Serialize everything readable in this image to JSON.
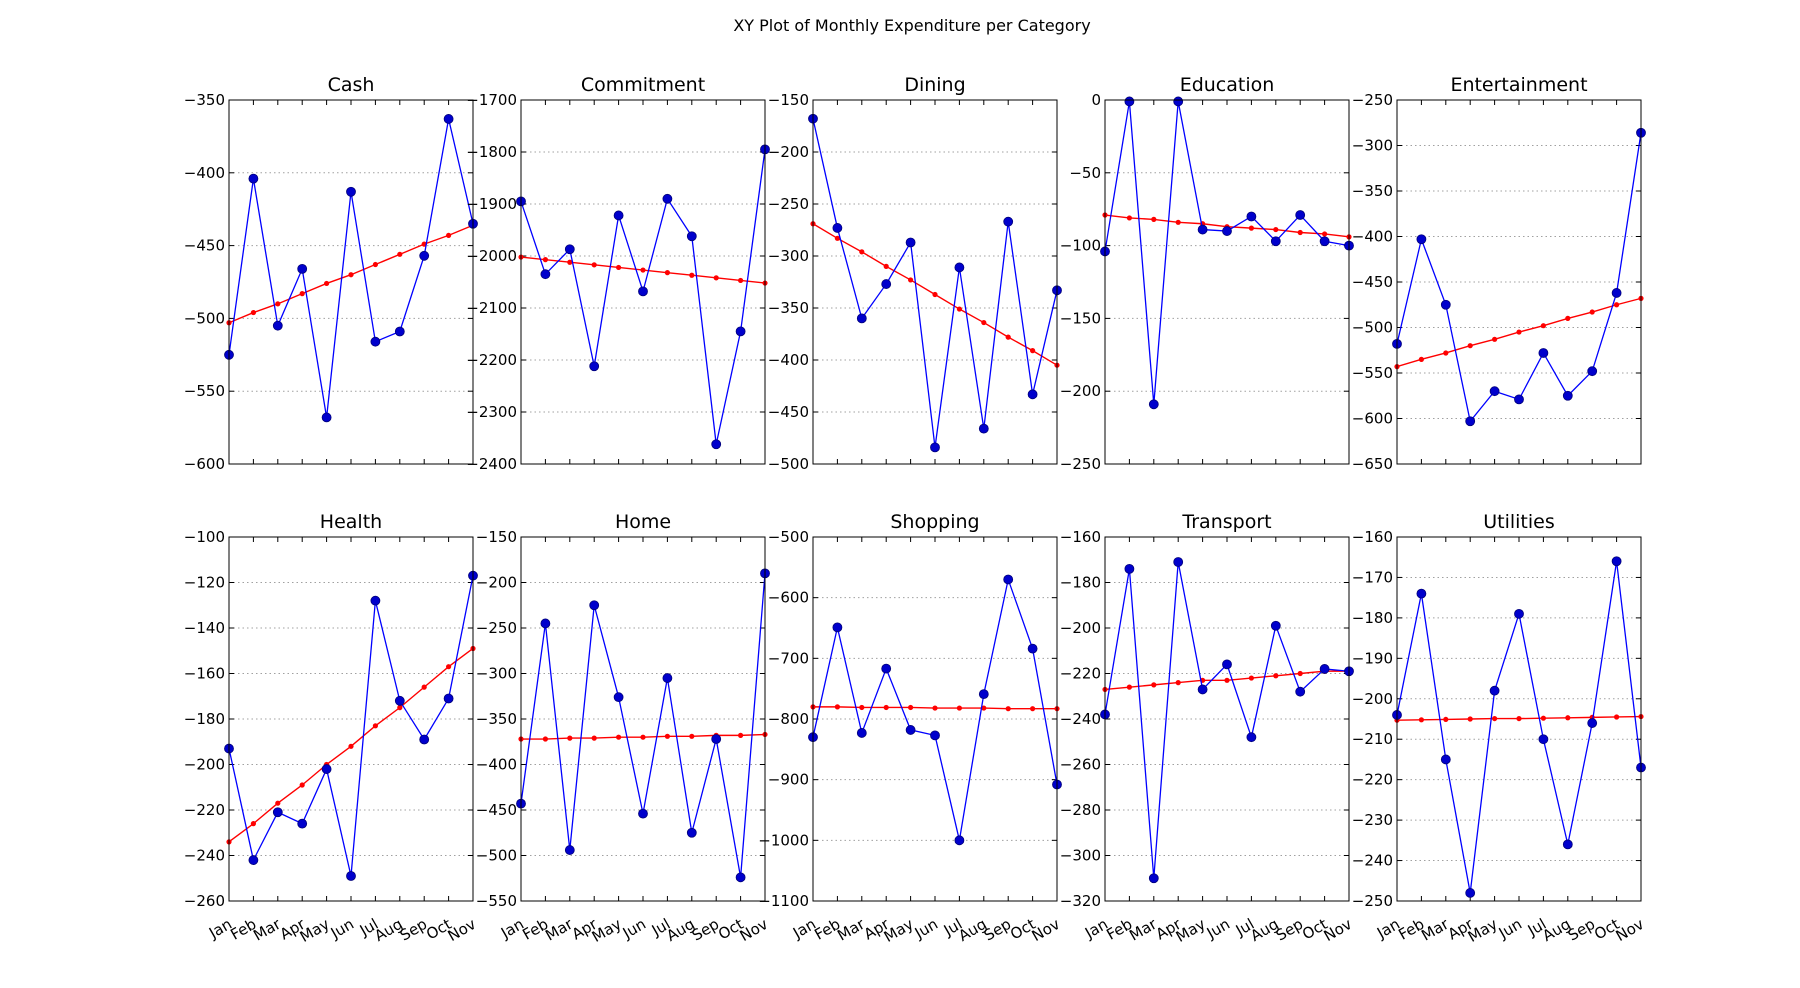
{
  "chart_data": {
    "type": "line",
    "title": "XY Plot of Monthly Expenditure per Category",
    "months": [
      "Jan",
      "Feb",
      "Mar",
      "Apr",
      "May",
      "Jun",
      "Jul",
      "Aug",
      "Sep",
      "Oct",
      "Nov"
    ],
    "grid": "y-dotted",
    "series_style": {
      "actual": "#0000ff",
      "trend": "#ff0000"
    },
    "panels": [
      {
        "name": "Cash",
        "ylim": [
          -600,
          -350
        ],
        "yticks": [
          -350,
          -400,
          -450,
          -500,
          -550,
          -600
        ],
        "values": [
          -525,
          -404,
          -505,
          -466,
          -568,
          -413,
          -516,
          -509,
          -457,
          -363,
          -435
        ],
        "trend": [
          -503,
          -496,
          -490,
          -483,
          -476,
          -470,
          -463,
          -456,
          -449,
          -443,
          -436
        ]
      },
      {
        "name": "Commitment",
        "ylim": [
          -2400,
          -1700
        ],
        "yticks": [
          -1700,
          -1800,
          -1900,
          -2000,
          -2100,
          -2200,
          -2300,
          -2400
        ],
        "values": [
          -1895,
          -2035,
          -1987,
          -2212,
          -1922,
          -2068,
          -1890,
          -1962,
          -2362,
          -2145,
          -1795
        ],
        "trend": [
          -2002,
          -2007,
          -2012,
          -2017,
          -2022,
          -2027,
          -2032,
          -2037,
          -2042,
          -2047,
          -2052
        ]
      },
      {
        "name": "Dining",
        "ylim": [
          -500,
          -150
        ],
        "yticks": [
          -150,
          -200,
          -250,
          -300,
          -350,
          -400,
          -450,
          -500
        ],
        "values": [
          -168,
          -273,
          -360,
          -327,
          -287,
          -484,
          -311,
          -466,
          -267,
          -433,
          -333
        ],
        "trend": [
          -269,
          -283,
          -296,
          -310,
          -323,
          -337,
          -351,
          -364,
          -378,
          -391,
          -405
        ]
      },
      {
        "name": "Education",
        "ylim": [
          -250,
          0
        ],
        "yticks": [
          0,
          -50,
          -100,
          -150,
          -200,
          -250
        ],
        "values": [
          -104,
          -1,
          -209,
          -1,
          -89,
          -90,
          -80,
          -97,
          -79,
          -97,
          -100
        ],
        "trend": [
          -79,
          -81,
          -82,
          -84,
          -85,
          -87,
          -88,
          -89,
          -91,
          -92,
          -94
        ]
      },
      {
        "name": "Entertainment",
        "ylim": [
          -650,
          -250
        ],
        "yticks": [
          -250,
          -300,
          -350,
          -400,
          -450,
          -500,
          -550,
          -600,
          -650
        ],
        "values": [
          -518,
          -403,
          -475,
          -603,
          -570,
          -579,
          -528,
          -575,
          -548,
          -462,
          -286
        ],
        "trend": [
          -543,
          -535,
          -528,
          -520,
          -513,
          -505,
          -498,
          -490,
          -483,
          -475,
          -468
        ]
      },
      {
        "name": "Health",
        "ylim": [
          -260,
          -100
        ],
        "yticks": [
          -100,
          -120,
          -140,
          -160,
          -180,
          -200,
          -220,
          -240,
          -260
        ],
        "values": [
          -193,
          -242,
          -221,
          -226,
          -202,
          -249,
          -128,
          -172,
          -189,
          -171,
          -117
        ],
        "trend": [
          -234,
          -226,
          -217,
          -209,
          -200,
          -192,
          -183,
          -175,
          -166,
          -157,
          -149
        ]
      },
      {
        "name": "Home",
        "ylim": [
          -550,
          -150
        ],
        "yticks": [
          -150,
          -200,
          -250,
          -300,
          -350,
          -400,
          -450,
          -500,
          -550
        ],
        "values": [
          -443,
          -245,
          -494,
          -225,
          -326,
          -454,
          -305,
          -475,
          -372,
          -524,
          -190
        ],
        "trend": [
          -372,
          -372,
          -371,
          -371,
          -370,
          -370,
          -369,
          -369,
          -368,
          -368,
          -367
        ]
      },
      {
        "name": "Shopping",
        "ylim": [
          -1100,
          -500
        ],
        "yticks": [
          -500,
          -600,
          -700,
          -800,
          -900,
          -1000,
          -1100
        ],
        "values": [
          -830,
          -649,
          -823,
          -717,
          -818,
          -827,
          -1000,
          -759,
          -570,
          -684,
          -908
        ],
        "trend": [
          -780,
          -780,
          -781,
          -781,
          -781,
          -782,
          -782,
          -782,
          -783,
          -783,
          -783
        ]
      },
      {
        "name": "Transport",
        "ylim": [
          -320,
          -160
        ],
        "yticks": [
          -160,
          -180,
          -200,
          -220,
          -240,
          -260,
          -280,
          -300,
          -320
        ],
        "values": [
          -238,
          -174,
          -310,
          -171,
          -227,
          -216,
          -248,
          -199,
          -228,
          -218,
          -219
        ],
        "trend": [
          -227,
          -226,
          -225,
          -224,
          -223,
          -223,
          -222,
          -221,
          -220,
          -219,
          -219
        ]
      },
      {
        "name": "Utilities",
        "ylim": [
          -250,
          -160
        ],
        "yticks": [
          -160,
          -170,
          -180,
          -190,
          -200,
          -210,
          -220,
          -230,
          -240,
          -250
        ],
        "values": [
          -204,
          -174,
          -215,
          -248,
          -198,
          -179,
          -210,
          -236,
          -206,
          -166,
          -217
        ],
        "trend": [
          -205.3,
          -205.2,
          -205.1,
          -205.0,
          -204.9,
          -204.9,
          -204.8,
          -204.7,
          -204.6,
          -204.5,
          -204.4
        ]
      }
    ]
  }
}
